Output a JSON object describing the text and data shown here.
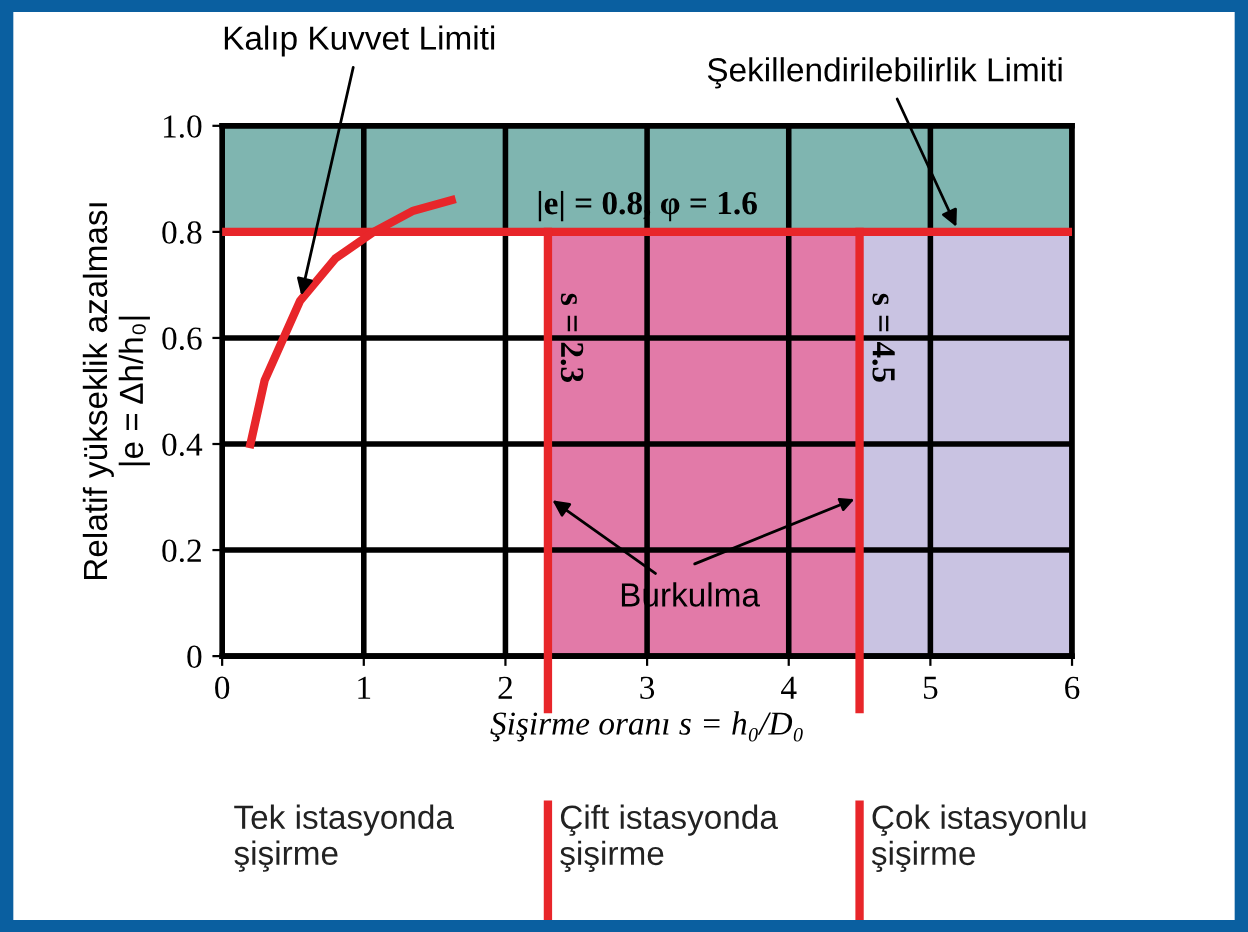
{
  "chart_data": {
    "type": "line",
    "xlabel": "Şişirme oranı s = h₀/D₀",
    "ylabel": "Relatif yükseklik azalması\n|e = Δh/h₀|",
    "x": [
      0.2,
      0.3,
      0.55,
      0.8,
      1.07,
      1.35,
      1.62
    ],
    "series": [
      {
        "color": "#e8262a",
        "values": [
          0.4,
          0.52,
          0.67,
          0.75,
          0.8,
          0.84,
          0.86
        ]
      }
    ],
    "xlim": [
      0,
      6
    ],
    "ylim": [
      0,
      1
    ],
    "xticks": [
      0,
      1,
      2,
      3,
      4,
      5,
      6
    ],
    "yticks": [
      0,
      0.2,
      0.4,
      0.6,
      0.8,
      {
        "value": 1,
        "label": "1.0"
      }
    ],
    "grid": true,
    "marker": "none",
    "line_style": "solid",
    "ref_lines": [
      {
        "axis": "y",
        "value": 0.8,
        "label": "|e| = 0.8, φ = 1.6",
        "color": "#e8262a"
      },
      {
        "axis": "x",
        "value": 2.3,
        "label": "s = 2.3",
        "color": "#e8262a"
      },
      {
        "axis": "x",
        "value": 4.5,
        "label": "s = 4.5",
        "color": "#e8262a"
      }
    ],
    "bands": [
      {
        "axis": "y",
        "from": 0.8,
        "to": 1,
        "color": "#7fb5b0"
      },
      {
        "axis": "x",
        "from": 2.3,
        "to": 4.5,
        "color": "#e27aa8"
      },
      {
        "axis": "x",
        "from": 4.5,
        "to": 6,
        "color": "#c9c3e2"
      }
    ],
    "annotations": [
      {
        "text": "Kalıp Kuvvet Limiti",
        "x": 0.55,
        "y": 0.67
      },
      {
        "text": "Şekillendirilebilirlik Limiti",
        "x": 5.2,
        "y": 0.8
      },
      {
        "text": "Burkulma",
        "x": 2.3,
        "y": 0.3
      },
      "Tek istasyonda\nşişirme",
      "Çift istasyonda\nşişirme",
      "Çok istasyonlu\nşişirme"
    ]
  }
}
